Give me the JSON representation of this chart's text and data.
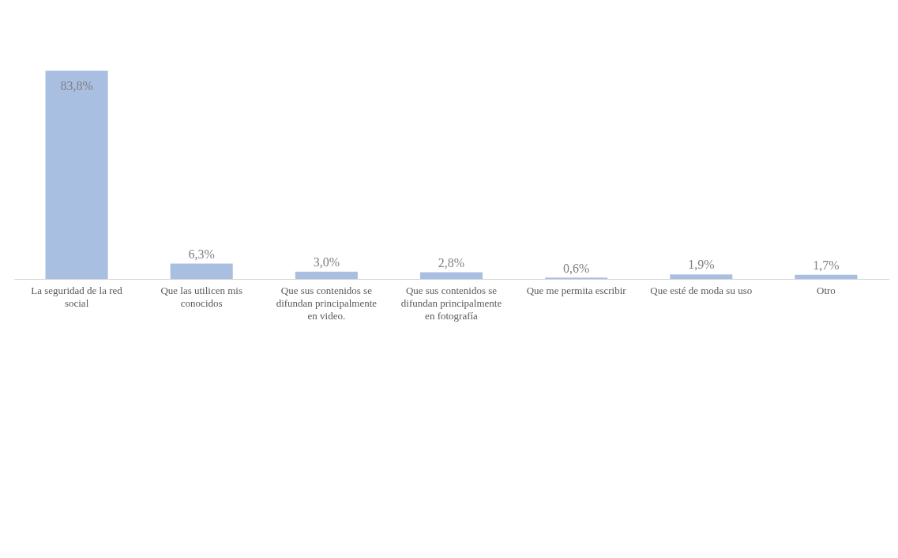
{
  "chart_data": {
    "type": "bar",
    "categories": [
      "La seguridad de la red social",
      "Que las utilicen mis conocidos",
      "Que sus contenidos se difundan principalmente en video.",
      "Que sus contenidos se difundan principalmente en fotografía",
      "Que me permita escribir",
      "Que esté de moda su uso",
      "Otro"
    ],
    "values": [
      83.8,
      6.3,
      3.0,
      2.8,
      0.6,
      1.9,
      1.7
    ],
    "value_labels": [
      "83,8%",
      "6,3%",
      "3,0%",
      "2,8%",
      "0,6%",
      "1,9%",
      "1,7%"
    ],
    "color": "#a9bfe1",
    "grid": false,
    "legend": false
  }
}
